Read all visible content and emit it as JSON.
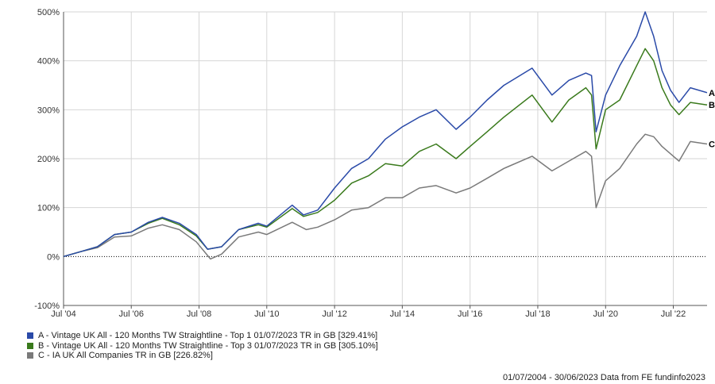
{
  "chart_data": {
    "type": "line",
    "ylim": [
      -100,
      500
    ],
    "y_ticks": [
      "-100%",
      "0%",
      "100%",
      "200%",
      "300%",
      "400%",
      "500%"
    ],
    "y_tick_values": [
      -100,
      0,
      100,
      200,
      300,
      400,
      500
    ],
    "x_range": [
      "2004-07-01",
      "2023-06-30"
    ],
    "x_ticks": [
      "Jul '04",
      "Jul '06",
      "Jul '08",
      "Jul '10",
      "Jul '12",
      "Jul '14",
      "Jul '16",
      "Jul '18",
      "Jul '20",
      "Jul '22"
    ],
    "x_tick_dates": [
      "2004-07-01",
      "2006-07-01",
      "2008-07-01",
      "2010-07-01",
      "2012-07-01",
      "2014-07-01",
      "2016-07-01",
      "2018-07-01",
      "2020-07-01",
      "2022-07-01"
    ],
    "grid": true,
    "legend_position": "bottom-left",
    "series": [
      {
        "name": "A - Vintage UK All - 120 Months TW Straightline - Top 1 01/07/2023 TR in GB [329.41%]",
        "end_label": "A",
        "color": "#2a4aa8",
        "points": [
          [
            "2004-07-01",
            0
          ],
          [
            "2005-01-01",
            10
          ],
          [
            "2005-07-01",
            20
          ],
          [
            "2006-01-01",
            45
          ],
          [
            "2006-07-01",
            50
          ],
          [
            "2007-01-01",
            70
          ],
          [
            "2007-06-01",
            80
          ],
          [
            "2007-12-01",
            68
          ],
          [
            "2008-06-01",
            45
          ],
          [
            "2008-10-01",
            15
          ],
          [
            "2009-03-01",
            20
          ],
          [
            "2009-09-01",
            55
          ],
          [
            "2010-04-01",
            68
          ],
          [
            "2010-07-01",
            62
          ],
          [
            "2011-04-01",
            105
          ],
          [
            "2011-08-01",
            85
          ],
          [
            "2012-01-01",
            95
          ],
          [
            "2012-07-01",
            140
          ],
          [
            "2013-01-01",
            180
          ],
          [
            "2013-07-01",
            200
          ],
          [
            "2014-01-01",
            240
          ],
          [
            "2014-07-01",
            265
          ],
          [
            "2015-01-01",
            285
          ],
          [
            "2015-07-01",
            300
          ],
          [
            "2016-02-01",
            260
          ],
          [
            "2016-07-01",
            285
          ],
          [
            "2017-01-01",
            320
          ],
          [
            "2017-07-01",
            350
          ],
          [
            "2018-05-01",
            385
          ],
          [
            "2018-12-01",
            330
          ],
          [
            "2019-06-01",
            360
          ],
          [
            "2019-12-01",
            375
          ],
          [
            "2020-02-01",
            370
          ],
          [
            "2020-03-20",
            255
          ],
          [
            "2020-07-01",
            330
          ],
          [
            "2020-12-01",
            390
          ],
          [
            "2021-06-01",
            450
          ],
          [
            "2021-09-01",
            500
          ],
          [
            "2021-12-01",
            450
          ],
          [
            "2022-03-01",
            380
          ],
          [
            "2022-06-01",
            340
          ],
          [
            "2022-09-01",
            315
          ],
          [
            "2023-01-01",
            345
          ],
          [
            "2023-06-30",
            335
          ]
        ]
      },
      {
        "name": "B - Vintage UK All - 120 Months TW Straightline - Top 3 01/07/2023 TR in GB [305.10%]",
        "end_label": "B",
        "color": "#3a7a1c",
        "points": [
          [
            "2004-07-01",
            0
          ],
          [
            "2005-01-01",
            10
          ],
          [
            "2005-07-01",
            20
          ],
          [
            "2006-01-01",
            45
          ],
          [
            "2006-07-01",
            50
          ],
          [
            "2007-01-01",
            68
          ],
          [
            "2007-06-01",
            78
          ],
          [
            "2007-12-01",
            65
          ],
          [
            "2008-06-01",
            42
          ],
          [
            "2008-10-01",
            15
          ],
          [
            "2009-03-01",
            20
          ],
          [
            "2009-09-01",
            55
          ],
          [
            "2010-04-01",
            65
          ],
          [
            "2010-07-01",
            60
          ],
          [
            "2011-04-01",
            98
          ],
          [
            "2011-08-01",
            82
          ],
          [
            "2012-01-01",
            90
          ],
          [
            "2012-07-01",
            115
          ],
          [
            "2013-01-01",
            150
          ],
          [
            "2013-07-01",
            165
          ],
          [
            "2014-01-01",
            190
          ],
          [
            "2014-07-01",
            185
          ],
          [
            "2015-01-01",
            215
          ],
          [
            "2015-07-01",
            230
          ],
          [
            "2016-02-01",
            200
          ],
          [
            "2016-07-01",
            225
          ],
          [
            "2017-01-01",
            255
          ],
          [
            "2017-07-01",
            285
          ],
          [
            "2018-05-01",
            330
          ],
          [
            "2018-12-01",
            275
          ],
          [
            "2019-06-01",
            320
          ],
          [
            "2019-12-01",
            345
          ],
          [
            "2020-02-01",
            330
          ],
          [
            "2020-03-20",
            220
          ],
          [
            "2020-07-01",
            300
          ],
          [
            "2020-12-01",
            320
          ],
          [
            "2021-06-01",
            390
          ],
          [
            "2021-09-01",
            425
          ],
          [
            "2021-12-01",
            400
          ],
          [
            "2022-03-01",
            345
          ],
          [
            "2022-06-01",
            310
          ],
          [
            "2022-09-01",
            290
          ],
          [
            "2023-01-01",
            315
          ],
          [
            "2023-06-30",
            310
          ]
        ]
      },
      {
        "name": "C - IA UK All Companies TR in GB [226.82%]",
        "end_label": "C",
        "color": "#7a7a7a",
        "points": [
          [
            "2004-07-01",
            0
          ],
          [
            "2005-01-01",
            10
          ],
          [
            "2005-07-01",
            18
          ],
          [
            "2006-01-01",
            40
          ],
          [
            "2006-07-01",
            42
          ],
          [
            "2007-01-01",
            58
          ],
          [
            "2007-06-01",
            65
          ],
          [
            "2007-12-01",
            55
          ],
          [
            "2008-06-01",
            30
          ],
          [
            "2008-11-01",
            -5
          ],
          [
            "2009-03-01",
            5
          ],
          [
            "2009-09-01",
            40
          ],
          [
            "2010-04-01",
            50
          ],
          [
            "2010-07-01",
            45
          ],
          [
            "2011-04-01",
            70
          ],
          [
            "2011-09-01",
            55
          ],
          [
            "2012-01-01",
            60
          ],
          [
            "2012-07-01",
            75
          ],
          [
            "2013-01-01",
            95
          ],
          [
            "2013-07-01",
            100
          ],
          [
            "2014-01-01",
            120
          ],
          [
            "2014-07-01",
            120
          ],
          [
            "2015-01-01",
            140
          ],
          [
            "2015-07-01",
            145
          ],
          [
            "2016-02-01",
            130
          ],
          [
            "2016-07-01",
            140
          ],
          [
            "2017-01-01",
            160
          ],
          [
            "2017-07-01",
            180
          ],
          [
            "2018-05-01",
            205
          ],
          [
            "2018-12-01",
            175
          ],
          [
            "2019-06-01",
            195
          ],
          [
            "2019-12-01",
            215
          ],
          [
            "2020-02-01",
            205
          ],
          [
            "2020-03-20",
            100
          ],
          [
            "2020-07-01",
            155
          ],
          [
            "2020-12-01",
            180
          ],
          [
            "2021-06-01",
            230
          ],
          [
            "2021-09-01",
            250
          ],
          [
            "2021-12-01",
            245
          ],
          [
            "2022-03-01",
            225
          ],
          [
            "2022-06-01",
            210
          ],
          [
            "2022-09-01",
            195
          ],
          [
            "2023-01-01",
            235
          ],
          [
            "2023-06-30",
            230
          ]
        ]
      }
    ]
  },
  "legend": {
    "items": [
      {
        "label": "A - Vintage UK All - 120 Months TW Straightline - Top 1 01/07/2023 TR in GB [329.41%]",
        "color": "#2a4aa8"
      },
      {
        "label": "B - Vintage UK All - 120 Months TW Straightline - Top 3 01/07/2023 TR in GB [305.10%]",
        "color": "#3a7a1c"
      },
      {
        "label": "C - IA UK All Companies TR in GB [226.82%]",
        "color": "#7a7a7a"
      }
    ]
  },
  "footer": {
    "text": "01/07/2004 - 30/06/2023 Data from FE fundinfo2023"
  }
}
